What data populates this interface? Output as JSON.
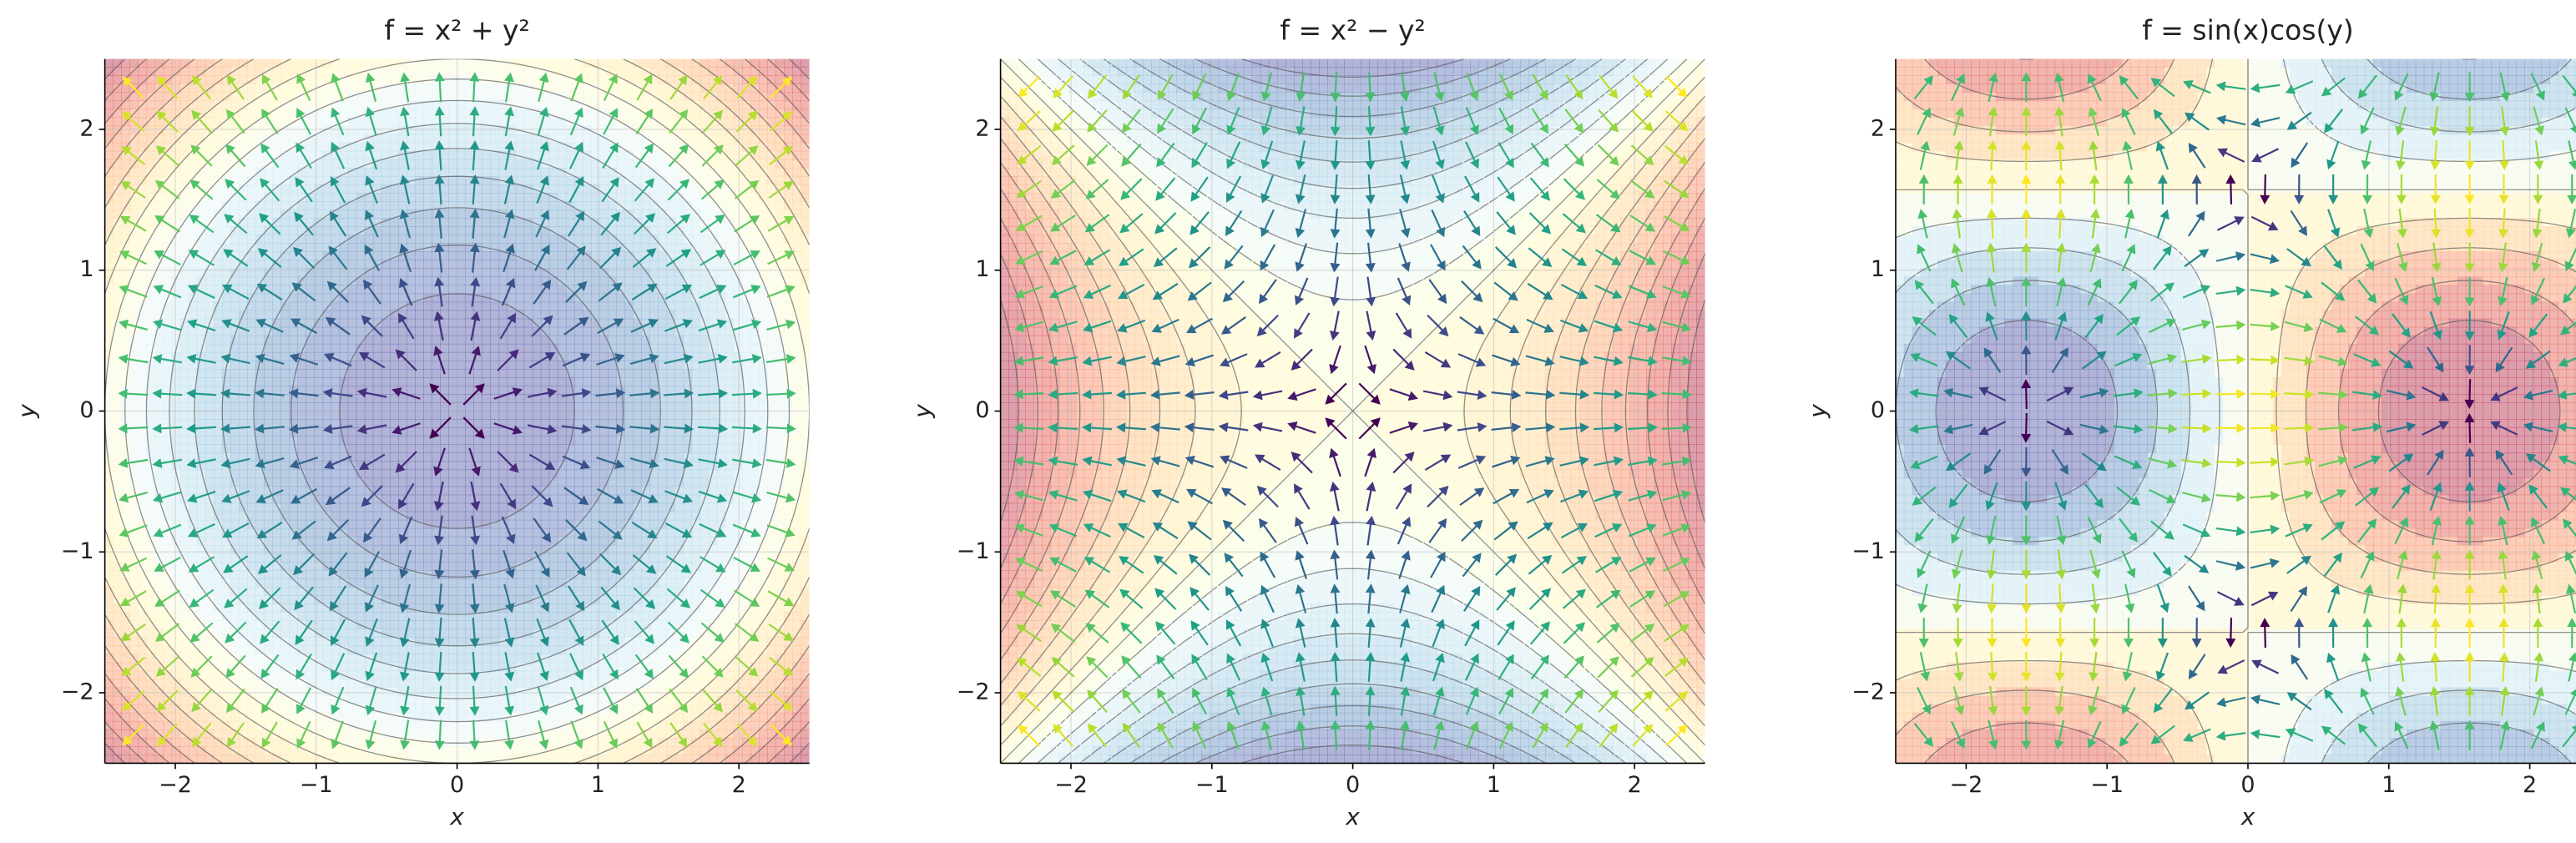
{
  "chart_data": [
    {
      "type": "gradient_field",
      "function": "x^2+y^2",
      "title": "f = x² + y²",
      "xlabel": "x",
      "ylabel": "y",
      "xlim": [
        -2.5,
        2.5
      ],
      "ylim": [
        -2.5,
        2.5
      ],
      "xticks": [
        {
          "value": -2,
          "label": "−2"
        },
        {
          "value": -1,
          "label": "−1"
        },
        0,
        1,
        2
      ],
      "yticks": [
        {
          "value": -2,
          "label": "−2"
        },
        {
          "value": -1,
          "label": "−1"
        },
        0,
        1,
        2
      ],
      "quiver": {
        "start": -2.3,
        "stop": 2.3,
        "count": 20
      },
      "contour_levels": 17,
      "grid": true,
      "colormap": "RdYlBu_r",
      "arrow_colormap": "viridis"
    },
    {
      "type": "gradient_field",
      "function": "x^2-y^2",
      "title": "f = x² − y²",
      "xlabel": "x",
      "ylabel": "y",
      "xlim": [
        -2.5,
        2.5
      ],
      "ylim": [
        -2.5,
        2.5
      ],
      "xticks": [
        {
          "value": -2,
          "label": "−2"
        },
        {
          "value": -1,
          "label": "−1"
        },
        0,
        1,
        2
      ],
      "yticks": [
        {
          "value": -2,
          "label": "−2"
        },
        {
          "value": -1,
          "label": "−1"
        },
        0,
        1,
        2
      ],
      "quiver": {
        "start": -2.3,
        "stop": 2.3,
        "count": 20
      },
      "contour_levels": 19,
      "grid": true,
      "colormap": "RdYlBu_r",
      "arrow_colormap": "viridis"
    },
    {
      "type": "gradient_field",
      "function": "sin(x)cos(y)",
      "title": "f = sin(x)cos(y)",
      "xlabel": "x",
      "ylabel": "y",
      "xlim": [
        -2.5,
        2.5
      ],
      "ylim": [
        -2.5,
        2.5
      ],
      "xticks": [
        {
          "value": -2,
          "label": "−2"
        },
        {
          "value": -1,
          "label": "−1"
        },
        0,
        1,
        2
      ],
      "yticks": [
        {
          "value": -2,
          "label": "−2"
        },
        {
          "value": -1,
          "label": "−1"
        },
        0,
        1,
        2
      ],
      "quiver": {
        "start": -2.3,
        "stop": 2.3,
        "count": 20
      },
      "contour_levels": 9,
      "grid": true,
      "colormap": "RdYlBu_r",
      "arrow_colormap": "viridis"
    }
  ]
}
